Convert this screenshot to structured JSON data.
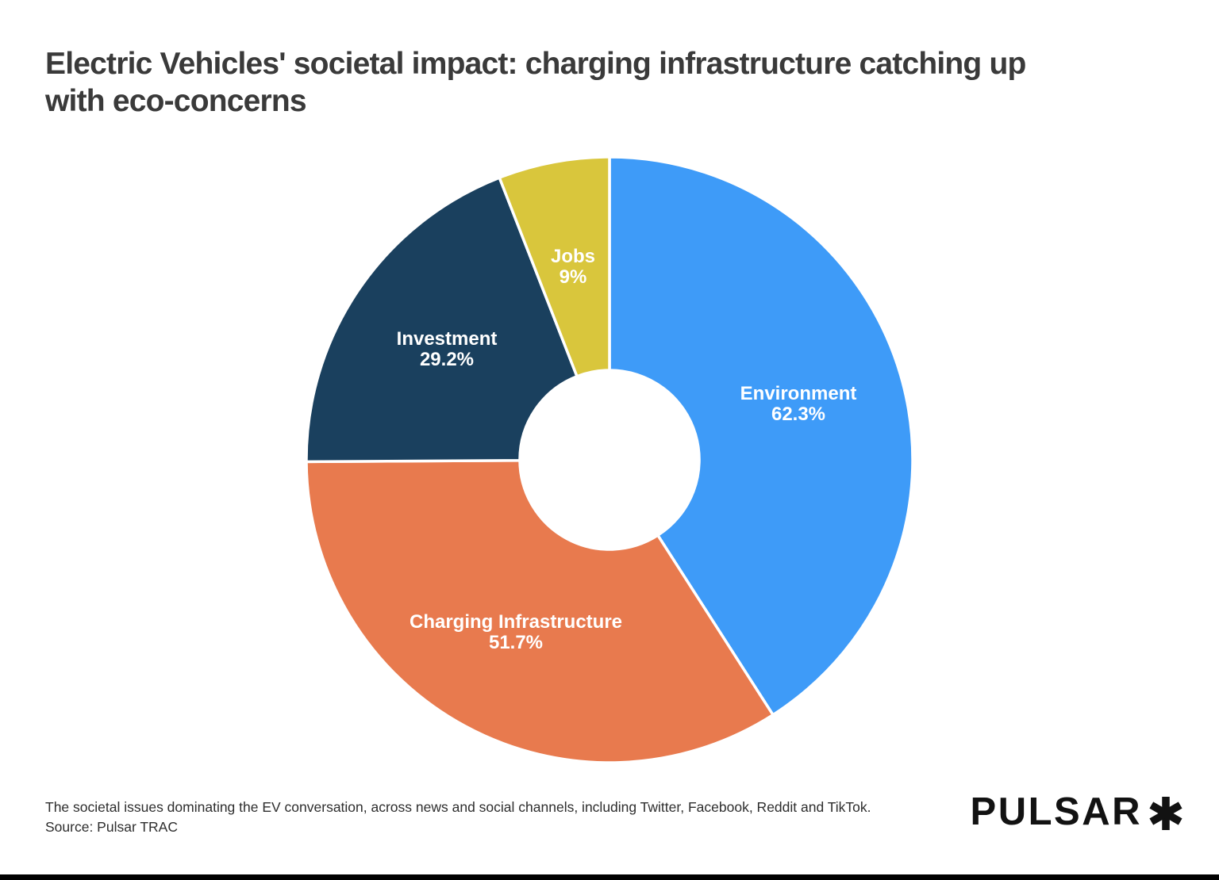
{
  "header": {
    "title_lines": [
      "Electric Vehicles' societal impact: charging infrastructure catching up",
      "with eco-concerns"
    ]
  },
  "chart_data": {
    "type": "pie",
    "donut": true,
    "title": "Electric Vehicles' societal impact: charging infrastructure catching up with eco-concerns",
    "subtitle": "The societal issues dominating the EV conversation, across news and social channels, including Twitter, Facebook, Reddit and TikTok.",
    "source": "Source: Pulsar TRAC",
    "values_unit": "%",
    "values_total": 152.2,
    "start_angle_deg": 0,
    "direction": "clockwise",
    "legend": "labels-inside-slices",
    "slices": [
      {
        "name": "Environment",
        "value": 62.3,
        "label": "62.3%",
        "color": "#3E9BF8"
      },
      {
        "name": "Charging Infrastructure",
        "value": 51.7,
        "label": "51.7%",
        "color": "#E87A4E"
      },
      {
        "name": "Investment",
        "value": 29.2,
        "label": "29.2%",
        "color": "#1A405E"
      },
      {
        "name": "Jobs",
        "value": 9,
        "label": "9%",
        "color": "#D9C63C"
      }
    ]
  },
  "branding": {
    "logo_text": "PULSAR",
    "logo_mark": "asterisk-icon",
    "logo_color": "#121212"
  }
}
